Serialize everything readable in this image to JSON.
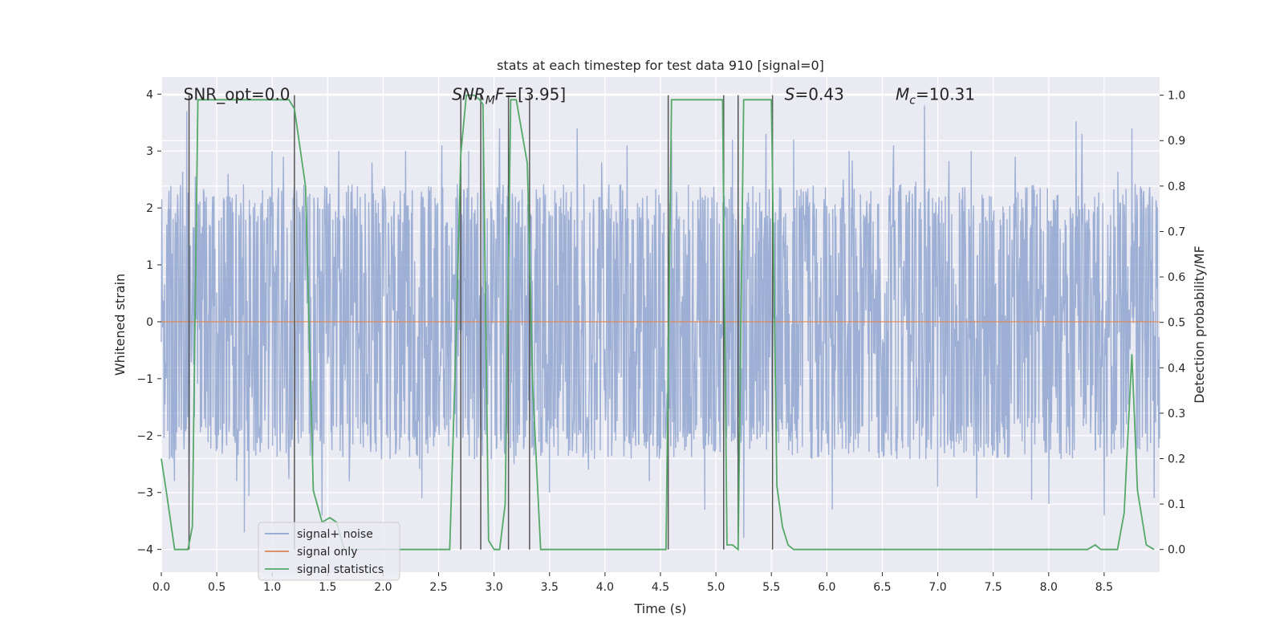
{
  "chart_data": {
    "type": "line",
    "title": "stats at each timestep for test data 910 [signal=0]",
    "xlabel": "Time (s)",
    "ylabel": "Whitened strain",
    "ylabel_right": "Detection probability/MF",
    "xlim": [
      0,
      9.0
    ],
    "ylim": [
      -4.4,
      4.3
    ],
    "ylim_right": [
      -0.05,
      1.04
    ],
    "x_ticks": [
      0.0,
      0.5,
      1.0,
      1.5,
      2.0,
      2.5,
      3.0,
      3.5,
      4.0,
      4.5,
      5.0,
      5.5,
      6.0,
      6.5,
      7.0,
      7.5,
      8.0,
      8.5
    ],
    "x_tick_labels": [
      "0.0",
      "0.5",
      "1.0",
      "1.5",
      "2.0",
      "2.5",
      "3.0",
      "3.5",
      "4.0",
      "4.5",
      "5.0",
      "5.5",
      "6.0",
      "6.5",
      "7.0",
      "7.5",
      "8.0",
      "8.5"
    ],
    "y_ticks": [
      -4,
      -3,
      -2,
      -1,
      0,
      1,
      2,
      3,
      4
    ],
    "y_tick_labels": [
      "−4",
      "−3",
      "−2",
      "−1",
      "0",
      "1",
      "2",
      "3",
      "4"
    ],
    "y_ticks_right": [
      0.0,
      0.1,
      0.2,
      0.3,
      0.4,
      0.5,
      0.6,
      0.7,
      0.8,
      0.9,
      1.0
    ],
    "y_tick_labels_right": [
      "0.0",
      "0.1",
      "0.2",
      "0.3",
      "0.4",
      "0.5",
      "0.6",
      "0.7",
      "0.8",
      "0.9",
      "1.0"
    ],
    "annotations": [
      {
        "text": "SNR_opt=0.0",
        "x": 0.2,
        "y": 4.0
      },
      {
        "text": "SNR",
        "sub": "M",
        "tail": "F=[3.95]",
        "italic": true,
        "x": 2.62,
        "y": 4.0
      },
      {
        "text": "S",
        "tail": "=0.43",
        "italic": true,
        "x": 5.62,
        "y": 4.0
      },
      {
        "text": "M",
        "sub": "c",
        "tail": "=10.31",
        "italic": true,
        "x": 6.62,
        "y": 4.0
      }
    ],
    "legend": {
      "position": "lower-left",
      "entries": [
        {
          "label": "signal+ noise",
          "color": "#8fa4cf"
        },
        {
          "label": "signal only",
          "color": "#dd8452"
        },
        {
          "label": "signal statistics",
          "color": "#55a868"
        }
      ]
    },
    "series": [
      {
        "name": "signal+ noise",
        "axis": "left",
        "color": "#8fa4cf",
        "description": "dense noise trace",
        "bulk_amplitude": 2.2,
        "peaks": [
          {
            "x": 0.07,
            "y": 2.3
          },
          {
            "x": 0.12,
            "y": -2.8
          },
          {
            "x": 0.23,
            "y": 3.7
          },
          {
            "x": 0.25,
            "y": -2.7
          },
          {
            "x": 0.6,
            "y": 2.6
          },
          {
            "x": 0.68,
            "y": -2.8
          },
          {
            "x": 0.75,
            "y": -3.7
          },
          {
            "x": 1.0,
            "y": 3.0
          },
          {
            "x": 1.1,
            "y": 2.9
          },
          {
            "x": 1.23,
            "y": -2.0
          },
          {
            "x": 1.45,
            "y": -3.4
          },
          {
            "x": 1.6,
            "y": 3.0
          },
          {
            "x": 1.9,
            "y": 2.8
          },
          {
            "x": 2.2,
            "y": 3.0
          },
          {
            "x": 2.35,
            "y": -3.1
          },
          {
            "x": 2.53,
            "y": 3.1
          },
          {
            "x": 2.77,
            "y": 3.0
          },
          {
            "x": 2.9,
            "y": 3.5
          },
          {
            "x": 3.05,
            "y": 3.4
          },
          {
            "x": 3.18,
            "y": -2.5
          },
          {
            "x": 3.5,
            "y": -3.0
          },
          {
            "x": 3.75,
            "y": 3.4
          },
          {
            "x": 3.85,
            "y": -2.6
          },
          {
            "x": 3.97,
            "y": 2.8
          },
          {
            "x": 4.2,
            "y": 3.1
          },
          {
            "x": 4.4,
            "y": -2.8
          },
          {
            "x": 4.6,
            "y": 3.2
          },
          {
            "x": 4.9,
            "y": -3.3
          },
          {
            "x": 5.15,
            "y": 3.2
          },
          {
            "x": 5.25,
            "y": -3.8
          },
          {
            "x": 5.45,
            "y": 3.3
          },
          {
            "x": 5.7,
            "y": 3.2
          },
          {
            "x": 6.05,
            "y": -3.3
          },
          {
            "x": 6.2,
            "y": 3.0
          },
          {
            "x": 6.6,
            "y": 3.1
          },
          {
            "x": 6.88,
            "y": 3.8
          },
          {
            "x": 7.0,
            "y": -2.9
          },
          {
            "x": 7.3,
            "y": 3.0
          },
          {
            "x": 7.35,
            "y": -3.1
          },
          {
            "x": 7.7,
            "y": 2.9
          },
          {
            "x": 8.0,
            "y": -3.2
          },
          {
            "x": 8.3,
            "y": 3.3
          },
          {
            "x": 8.5,
            "y": -3.4
          },
          {
            "x": 8.75,
            "y": 3.4
          },
          {
            "x": 8.95,
            "y": -3.1
          }
        ]
      },
      {
        "name": "signal only",
        "axis": "left",
        "color": "#dd8452",
        "x": [
          0.0,
          9.0
        ],
        "y": [
          0.0,
          0.0
        ]
      },
      {
        "name": "signal statistics",
        "axis": "right",
        "color": "#55a868",
        "x": [
          0.0,
          0.05,
          0.12,
          0.2,
          0.24,
          0.28,
          0.33,
          0.5,
          0.8,
          1.0,
          1.15,
          1.2,
          1.3,
          1.37,
          1.45,
          1.52,
          1.58,
          1.65,
          2.0,
          2.3,
          2.5,
          2.6,
          2.65,
          2.7,
          2.75,
          2.82,
          2.87,
          2.9,
          2.95,
          3.0,
          3.05,
          3.1,
          3.15,
          3.2,
          3.3,
          3.35,
          3.42,
          3.45,
          3.5,
          4.0,
          4.5,
          4.55,
          4.6,
          4.65,
          4.8,
          5.0,
          5.06,
          5.1,
          5.15,
          5.2,
          5.25,
          5.3,
          5.45,
          5.5,
          5.55,
          5.6,
          5.65,
          5.7,
          6.0,
          6.5,
          7.0,
          7.5,
          8.0,
          8.35,
          8.42,
          8.47,
          8.5,
          8.62,
          8.68,
          8.75,
          8.8,
          8.88,
          8.95
        ],
        "y": [
          0.2,
          0.12,
          0.0,
          0.0,
          0.0,
          0.05,
          0.99,
          0.99,
          0.99,
          0.99,
          0.99,
          0.97,
          0.8,
          0.13,
          0.06,
          0.07,
          0.06,
          0.0,
          0.0,
          0.0,
          0.0,
          0.0,
          0.4,
          0.87,
          1.0,
          1.0,
          0.99,
          0.98,
          0.02,
          0.0,
          0.0,
          0.1,
          0.99,
          0.99,
          0.85,
          0.35,
          0.0,
          0.0,
          0.0,
          0.0,
          0.0,
          0.0,
          0.99,
          0.99,
          0.99,
          0.99,
          0.99,
          0.01,
          0.01,
          0.0,
          0.99,
          0.99,
          0.99,
          0.99,
          0.14,
          0.05,
          0.01,
          0.0,
          0.0,
          0.0,
          0.0,
          0.0,
          0.0,
          0.0,
          0.01,
          0.0,
          0.0,
          0.0,
          0.08,
          0.43,
          0.13,
          0.01,
          0.0
        ]
      }
    ],
    "vertical_lines": [
      0.25,
      1.2,
      2.7,
      2.88,
      3.13,
      3.32,
      4.57,
      5.07,
      5.2,
      5.51
    ]
  }
}
